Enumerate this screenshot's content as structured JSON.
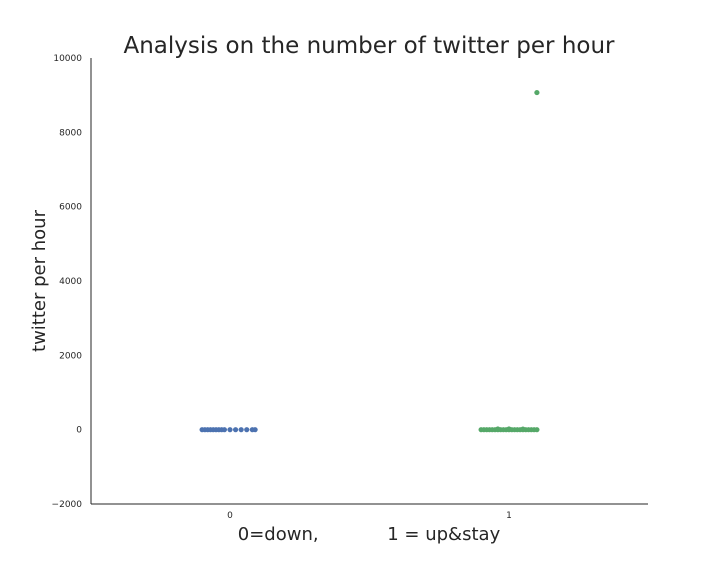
{
  "chart_data": {
    "type": "scatter",
    "subtype": "strip",
    "title": "Analysis on the number of twitter per hour",
    "xlabel": "0=down,            1 = up&stay",
    "ylabel": "twitter per hour",
    "categories": [
      "0",
      "1"
    ],
    "ylim": [
      -2000,
      10000
    ],
    "yticks": [
      -2000,
      0,
      2000,
      4000,
      6000,
      8000,
      10000
    ],
    "ytick_labels": [
      "−2000",
      "0",
      "2000",
      "4000",
      "6000",
      "8000",
      "10000"
    ],
    "grid": false,
    "legend": "none",
    "series": [
      {
        "category": "0",
        "color": "#4c72b0",
        "points": [
          {
            "jitter": -0.1,
            "y": 0
          },
          {
            "jitter": -0.09,
            "y": 0
          },
          {
            "jitter": -0.08,
            "y": 0
          },
          {
            "jitter": -0.07,
            "y": 0
          },
          {
            "jitter": -0.06,
            "y": 0
          },
          {
            "jitter": -0.05,
            "y": 0
          },
          {
            "jitter": -0.04,
            "y": 0
          },
          {
            "jitter": -0.03,
            "y": 0
          },
          {
            "jitter": -0.02,
            "y": 0
          },
          {
            "jitter": 0.0,
            "y": 0
          },
          {
            "jitter": 0.02,
            "y": 0
          },
          {
            "jitter": 0.04,
            "y": 0
          },
          {
            "jitter": 0.06,
            "y": 0
          },
          {
            "jitter": 0.08,
            "y": 0
          },
          {
            "jitter": 0.09,
            "y": 0
          }
        ]
      },
      {
        "category": "1",
        "color": "#55a868",
        "points": [
          {
            "jitter": -0.1,
            "y": 0
          },
          {
            "jitter": -0.09,
            "y": 0
          },
          {
            "jitter": -0.08,
            "y": 0
          },
          {
            "jitter": -0.07,
            "y": 0
          },
          {
            "jitter": -0.06,
            "y": 0
          },
          {
            "jitter": -0.05,
            "y": 0
          },
          {
            "jitter": -0.04,
            "y": 0
          },
          {
            "jitter": -0.03,
            "y": 0
          },
          {
            "jitter": -0.04,
            "y": 20
          },
          {
            "jitter": -0.02,
            "y": 0
          },
          {
            "jitter": -0.01,
            "y": 0
          },
          {
            "jitter": 0.0,
            "y": 0
          },
          {
            "jitter": 0.0,
            "y": 20
          },
          {
            "jitter": 0.01,
            "y": 0
          },
          {
            "jitter": 0.02,
            "y": 0
          },
          {
            "jitter": 0.03,
            "y": 0
          },
          {
            "jitter": 0.04,
            "y": 0
          },
          {
            "jitter": 0.05,
            "y": 0
          },
          {
            "jitter": 0.05,
            "y": 15
          },
          {
            "jitter": 0.06,
            "y": 0
          },
          {
            "jitter": 0.07,
            "y": 0
          },
          {
            "jitter": 0.08,
            "y": 0
          },
          {
            "jitter": 0.09,
            "y": 0
          },
          {
            "jitter": 0.1,
            "y": 0
          },
          {
            "jitter": 0.1,
            "y": 9070
          }
        ]
      }
    ]
  }
}
